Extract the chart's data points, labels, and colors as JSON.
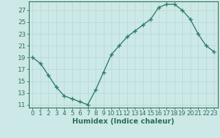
{
  "x": [
    0,
    1,
    2,
    3,
    4,
    5,
    6,
    7,
    8,
    9,
    10,
    11,
    12,
    13,
    14,
    15,
    16,
    17,
    18,
    19,
    20,
    21,
    22,
    23
  ],
  "y": [
    19.0,
    18.0,
    16.0,
    14.0,
    12.5,
    12.0,
    11.5,
    11.0,
    13.5,
    16.5,
    19.5,
    21.0,
    22.5,
    23.5,
    24.5,
    25.5,
    27.5,
    28.0,
    28.0,
    27.0,
    25.5,
    23.0,
    21.0,
    20.0
  ],
  "line_color": "#2d7a6a",
  "marker": "+",
  "marker_size": 4,
  "marker_linewidth": 1.0,
  "line_width": 1.0,
  "bg_color": "#cce9e7",
  "grid_color": "#b8d8d6",
  "axis_color": "#2d6b5a",
  "tick_color": "#2d6b5a",
  "xlabel": "Humidex (Indice chaleur)",
  "xlim": [
    -0.5,
    23.5
  ],
  "ylim": [
    10.5,
    28.5
  ],
  "yticks": [
    11,
    13,
    15,
    17,
    19,
    21,
    23,
    25,
    27
  ],
  "xticks": [
    0,
    1,
    2,
    3,
    4,
    5,
    6,
    7,
    8,
    9,
    10,
    11,
    12,
    13,
    14,
    15,
    16,
    17,
    18,
    19,
    20,
    21,
    22,
    23
  ],
  "tick_fontsize": 6.5,
  "label_fontsize": 7.5
}
